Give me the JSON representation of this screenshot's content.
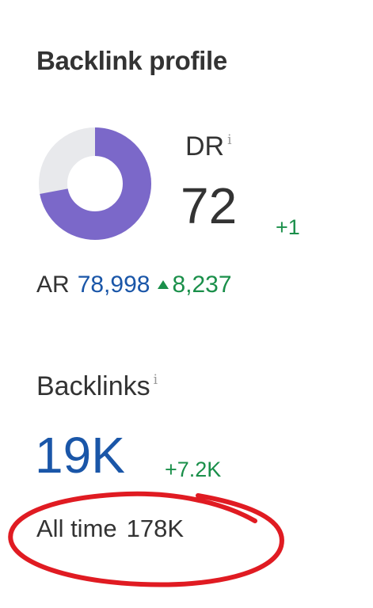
{
  "widget": {
    "title": "Backlink profile"
  },
  "dr": {
    "label": "DR",
    "info_icon": "i",
    "value": "72",
    "delta": "+1",
    "donut_fraction": 0.72,
    "donut_color": "#7b68c9",
    "donut_track_color": "#e8e9ec"
  },
  "ar": {
    "label": "AR",
    "value": "78,998",
    "delta": "8,237",
    "delta_icon": "triangle-up-icon"
  },
  "backlinks": {
    "label": "Backlinks",
    "info_icon": "i",
    "value": "19K",
    "delta": "+7.2K",
    "all_time_label": "All time",
    "all_time_value": "178K"
  },
  "annotation": {
    "shape": "red-ellipse",
    "color": "#e01b22"
  },
  "colors": {
    "text": "#333333",
    "link_blue": "#1a56a8",
    "positive_green": "#1a8f4a"
  }
}
